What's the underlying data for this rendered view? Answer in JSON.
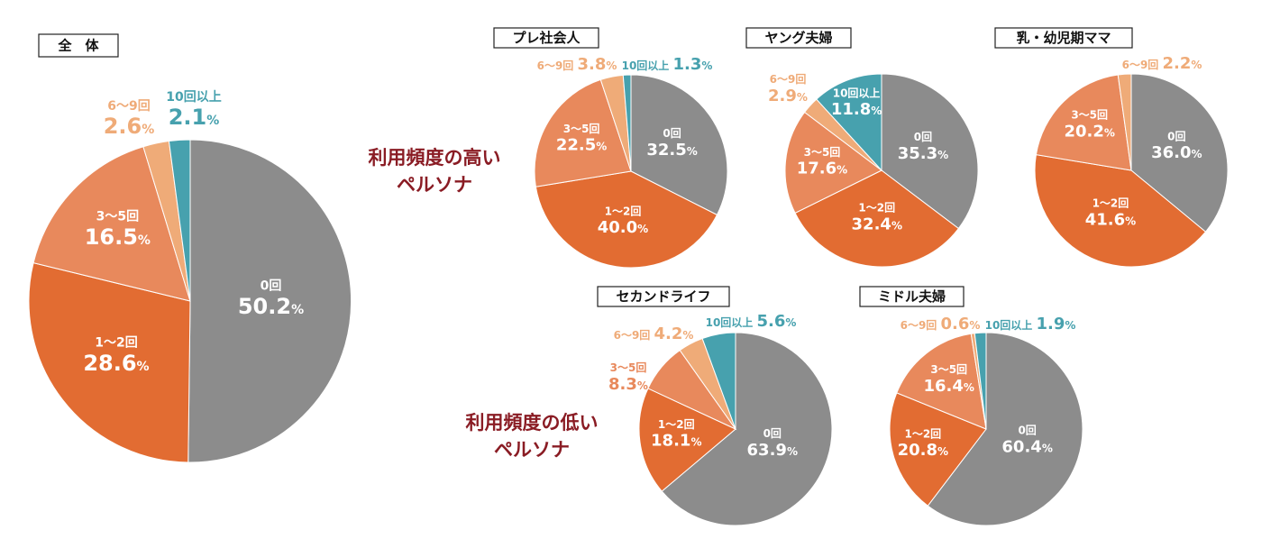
{
  "colors": {
    "cat0": "#8c8c8c",
    "cat1": "#e26c32",
    "cat2": "#e8895c",
    "cat3": "#efab78",
    "cat4": "#47a1ae",
    "label_dark_red": "#8a1c24"
  },
  "side_labels": {
    "high": [
      "利用頻度の高い",
      "ペルソナ"
    ],
    "low": [
      "利用頻度の低い",
      "ペルソナ"
    ]
  },
  "chart_data": [
    {
      "type": "pie",
      "title": "全　体",
      "categories": [
        "0回",
        "1〜2回",
        "3〜5回",
        "6〜9回",
        "10回以上"
      ],
      "values": [
        50.2,
        28.6,
        16.5,
        2.6,
        2.1
      ],
      "value_labels": [
        "50.2",
        "28.6",
        "16.5",
        "2.6",
        "2.1"
      ],
      "unit": "%"
    },
    {
      "type": "pie",
      "title": "プレ社会人",
      "categories": [
        "0回",
        "1〜2回",
        "3〜5回",
        "6〜9回",
        "10回以上"
      ],
      "values": [
        32.5,
        40.0,
        22.5,
        3.8,
        1.3
      ],
      "value_labels": [
        "32.5",
        "40.0",
        "22.5",
        "3.8",
        "1.3"
      ],
      "unit": "%"
    },
    {
      "type": "pie",
      "title": "ヤング夫婦",
      "categories": [
        "0回",
        "1〜2回",
        "3〜5回",
        "6〜9回",
        "10回以上"
      ],
      "values": [
        35.3,
        32.4,
        17.6,
        2.9,
        11.8
      ],
      "value_labels": [
        "35.3",
        "32.4",
        "17.6",
        "2.9",
        "11.8"
      ],
      "unit": "%"
    },
    {
      "type": "pie",
      "title": "乳・幼児期ママ",
      "categories": [
        "0回",
        "1〜2回",
        "3〜5回",
        "6〜9回"
      ],
      "values": [
        36.0,
        41.6,
        20.2,
        2.2
      ],
      "value_labels": [
        "36.0",
        "41.6",
        "20.2",
        "2.2"
      ],
      "unit": "%"
    },
    {
      "type": "pie",
      "title": "セカンドライフ",
      "categories": [
        "0回",
        "1〜2回",
        "3〜5回",
        "6〜9回",
        "10回以上"
      ],
      "values": [
        63.9,
        18.1,
        8.3,
        4.2,
        5.6
      ],
      "value_labels": [
        "63.9",
        "18.1",
        "8.3",
        "4.2",
        "5.6"
      ],
      "unit": "%"
    },
    {
      "type": "pie",
      "title": "ミドル夫婦",
      "categories": [
        "0回",
        "1〜2回",
        "3〜5回",
        "6〜9回",
        "10回以上"
      ],
      "values": [
        60.4,
        20.8,
        16.4,
        0.6,
        1.9
      ],
      "value_labels": [
        "60.4",
        "20.8",
        "16.4",
        "0.6",
        "1.9"
      ],
      "unit": "%"
    }
  ]
}
